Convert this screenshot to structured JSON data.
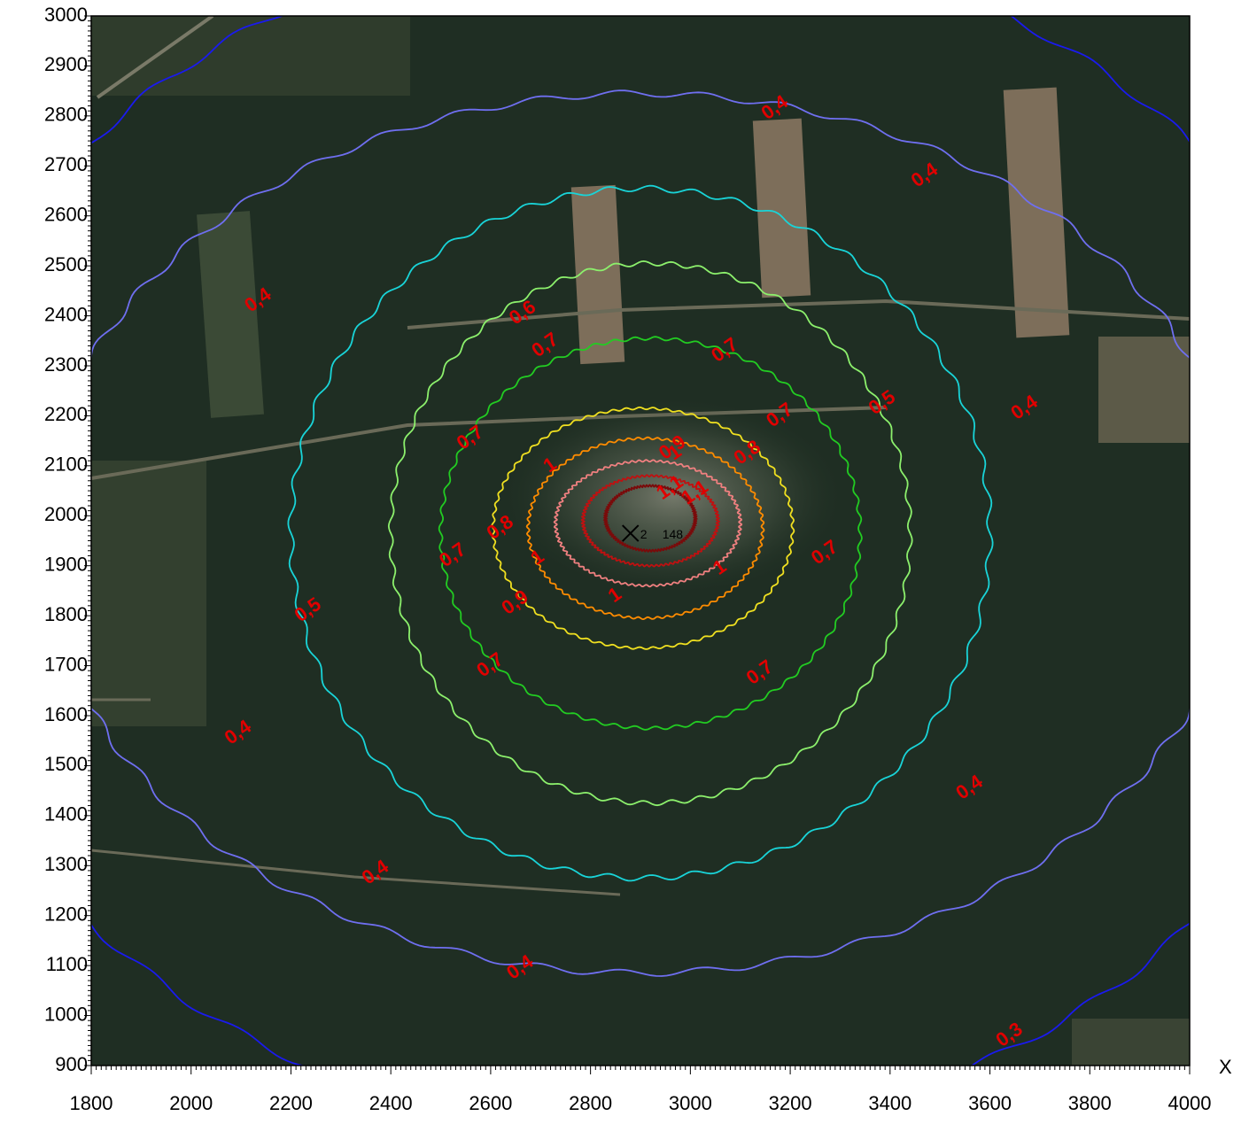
{
  "chart_data": {
    "type": "contour",
    "xlim": [
      1800,
      4000
    ],
    "ylim": [
      900,
      3000
    ],
    "x_ticks": [
      1800,
      2000,
      2200,
      2400,
      2600,
      2800,
      3000,
      3200,
      3400,
      3600,
      3800,
      4000
    ],
    "y_ticks": [
      900,
      1000,
      1100,
      1200,
      1300,
      1400,
      1500,
      1600,
      1700,
      1800,
      1900,
      2000,
      2100,
      2200,
      2300,
      2400,
      2500,
      2600,
      2700,
      2800,
      2900,
      3000
    ],
    "x_axis_label": "X",
    "background": "satellite imagery (forest)",
    "source": {
      "x": 2880,
      "y": 1965,
      "label": "2",
      "value_label": "148"
    },
    "contours": [
      {
        "level": "0,3",
        "color": "#1a1aee",
        "cx": 2900,
        "cy": 1965,
        "rx": 1450,
        "ry": 1200
      },
      {
        "level": "0,4",
        "color": "#6f6ff0",
        "cx": 2900,
        "cy": 1965,
        "rx": 1200,
        "ry": 880
      },
      {
        "level": "0,5",
        "color": "#19d4d8",
        "cx": 2900,
        "cy": 1965,
        "rx": 700,
        "ry": 690
      },
      {
        "level": "0,6",
        "color": "#8cf06c",
        "cx": 2920,
        "cy": 1965,
        "rx": 520,
        "ry": 540
      },
      {
        "level": "0,7",
        "color": "#22cc22",
        "cx": 2920,
        "cy": 1965,
        "rx": 420,
        "ry": 390
      },
      {
        "level": "0,8",
        "color": "#f0e020",
        "cx": 2905,
        "cy": 1975,
        "rx": 300,
        "ry": 240
      },
      {
        "level": "0,9",
        "color": "#ff8c00",
        "cx": 2910,
        "cy": 1975,
        "rx": 235,
        "ry": 180
      },
      {
        "level": "1",
        "color": "#f08080",
        "cx": 2915,
        "cy": 1985,
        "rx": 185,
        "ry": 125
      },
      {
        "level": "1",
        "color": "#c01010",
        "cx": 2920,
        "cy": 1990,
        "rx": 135,
        "ry": 90
      },
      {
        "level": "1,1",
        "color": "#7a0a0a",
        "cx": 2920,
        "cy": 1995,
        "rx": 90,
        "ry": 65
      }
    ],
    "contour_labels": [
      {
        "text": "0,4",
        "x": 3170,
        "y": 2815
      },
      {
        "text": "0,4",
        "x": 3470,
        "y": 2680
      },
      {
        "text": "0,4",
        "x": 2135,
        "y": 2430
      },
      {
        "text": "0,4",
        "x": 3670,
        "y": 2215
      },
      {
        "text": "0,4",
        "x": 2095,
        "y": 1565
      },
      {
        "text": "0,4",
        "x": 3560,
        "y": 1455
      },
      {
        "text": "0,4",
        "x": 2370,
        "y": 1285
      },
      {
        "text": "0,4",
        "x": 2660,
        "y": 1095
      },
      {
        "text": "0,3",
        "x": 3640,
        "y": 960
      },
      {
        "text": "0,5",
        "x": 3385,
        "y": 2225
      },
      {
        "text": "0,5",
        "x": 2235,
        "y": 1810
      },
      {
        "text": "0,6",
        "x": 2665,
        "y": 2405
      },
      {
        "text": "0,7",
        "x": 2710,
        "y": 2340
      },
      {
        "text": "0,7",
        "x": 3070,
        "y": 2330
      },
      {
        "text": "0,7",
        "x": 2560,
        "y": 2155
      },
      {
        "text": "0,7",
        "x": 3180,
        "y": 2200
      },
      {
        "text": "0,7",
        "x": 2525,
        "y": 1920
      },
      {
        "text": "0,7",
        "x": 3270,
        "y": 1925
      },
      {
        "text": "0,7",
        "x": 2600,
        "y": 1700
      },
      {
        "text": "0,7",
        "x": 3140,
        "y": 1685
      },
      {
        "text": "0,8",
        "x": 2620,
        "y": 1975
      },
      {
        "text": "0,8",
        "x": 3115,
        "y": 2125
      },
      {
        "text": "0,9",
        "x": 2965,
        "y": 2135
      },
      {
        "text": "0,9",
        "x": 2650,
        "y": 1825
      },
      {
        "text": "1",
        "x": 2720,
        "y": 2100
      },
      {
        "text": "1",
        "x": 2970,
        "y": 2125
      },
      {
        "text": "1",
        "x": 2695,
        "y": 1915
      },
      {
        "text": "1",
        "x": 2850,
        "y": 1840
      },
      {
        "text": "1",
        "x": 3060,
        "y": 1895
      },
      {
        "text": "1,1",
        "x": 2960,
        "y": 2055
      },
      {
        "text": "1,1",
        "x": 3010,
        "y": 2045
      }
    ]
  }
}
